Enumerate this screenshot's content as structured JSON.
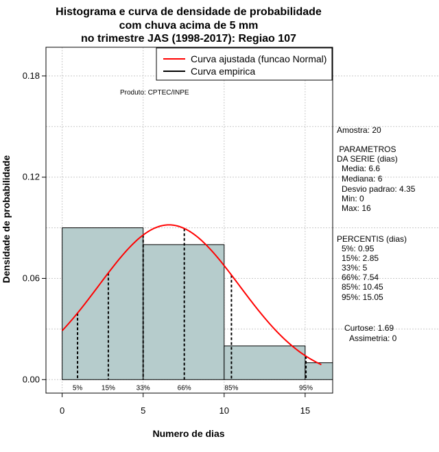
{
  "chart_data": {
    "type": "bar",
    "title": [
      "Histograma e curva de densidade de probabilidade",
      "com chuva acima de 5 mm",
      "no trimestre JAS (1998-2017): Regiao 107"
    ],
    "xlabel": "Numero de dias",
    "ylabel": "Densidade de probabilidade",
    "xlim": [
      -1,
      16.7
    ],
    "ylim": [
      -0.008,
      0.197
    ],
    "xticks": [
      0,
      5,
      10,
      15
    ],
    "yticks": [
      0.0,
      0.06,
      0.12,
      0.18
    ],
    "ytick_labels": [
      "0.00",
      "0.06",
      "0.12",
      "0.18"
    ],
    "bins": [
      {
        "x0": 0,
        "x1": 5,
        "density": 0.09
      },
      {
        "x0": 5,
        "x1": 10,
        "density": 0.08
      },
      {
        "x0": 10,
        "x1": 15,
        "density": 0.02
      },
      {
        "x0": 15,
        "x1": 16.7,
        "density": 0.01
      }
    ],
    "bar_color": "#b6cccc",
    "grid": true,
    "legend_position": "top-right",
    "legend": [
      {
        "label": "Curva ajustada (funcao Normal)",
        "color": "#ff0000"
      },
      {
        "label": "Curva empirica",
        "color": "#000000"
      }
    ],
    "normal_curve": {
      "mean": 6.6,
      "sd": 4.35,
      "x_range": [
        0,
        16
      ],
      "color": "#ff0000"
    },
    "percentile_lines": [
      {
        "label": "5%",
        "x": 0.95
      },
      {
        "label": "15%",
        "x": 2.85
      },
      {
        "label": "33%",
        "x": 5
      },
      {
        "label": "66%",
        "x": 7.54
      },
      {
        "label": "85%",
        "x": 10.45
      },
      {
        "label": "95%",
        "x": 15.05
      }
    ],
    "product_label": "Produto: CPTEC/INPE",
    "side_panel": {
      "sample": "Amostra: 20",
      "params_title": [
        " PARAMETROS",
        "DA SERIE (dias)"
      ],
      "params": [
        "Media: 6.6",
        "Mediana: 6",
        "Desvio padrao: 4.35",
        "Min: 0",
        "Max: 16"
      ],
      "percentiles_title": "PERCENTIS (dias)",
      "percentiles": [
        "5%: 0.95",
        "15%: 2.85",
        "33%: 5",
        "66%: 7.54",
        "85%: 10.45",
        "95%: 15.05"
      ],
      "kurtosis": "Curtose: 1.69",
      "skewness": "Assimetria: 0"
    }
  }
}
